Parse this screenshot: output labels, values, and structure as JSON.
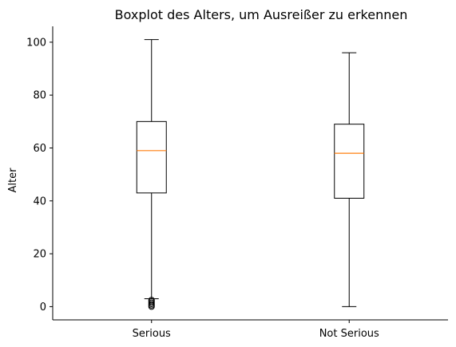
{
  "chart_data": {
    "type": "boxplot",
    "title": "Boxplot des Alters, um Ausreißer zu erkennen",
    "xlabel": "",
    "ylabel": "Alter",
    "ylim": [
      -5,
      106
    ],
    "yticks": [
      0,
      20,
      40,
      60,
      80,
      100
    ],
    "categories": [
      "Serious",
      "Not Serious"
    ],
    "series": [
      {
        "category": "Serious",
        "whisker_low": 3,
        "q1": 43,
        "median": 59,
        "q3": 70,
        "whisker_high": 101,
        "outliers": [
          0,
          0.5,
          1,
          1.5,
          2,
          2.5
        ]
      },
      {
        "category": "Not Serious",
        "whisker_low": 0,
        "q1": 41,
        "median": 58,
        "q3": 69,
        "whisker_high": 96,
        "outliers": []
      }
    ],
    "grid": false,
    "colors": {
      "box": "#000000",
      "median": "#ff7f0e",
      "axis": "#000000"
    }
  }
}
